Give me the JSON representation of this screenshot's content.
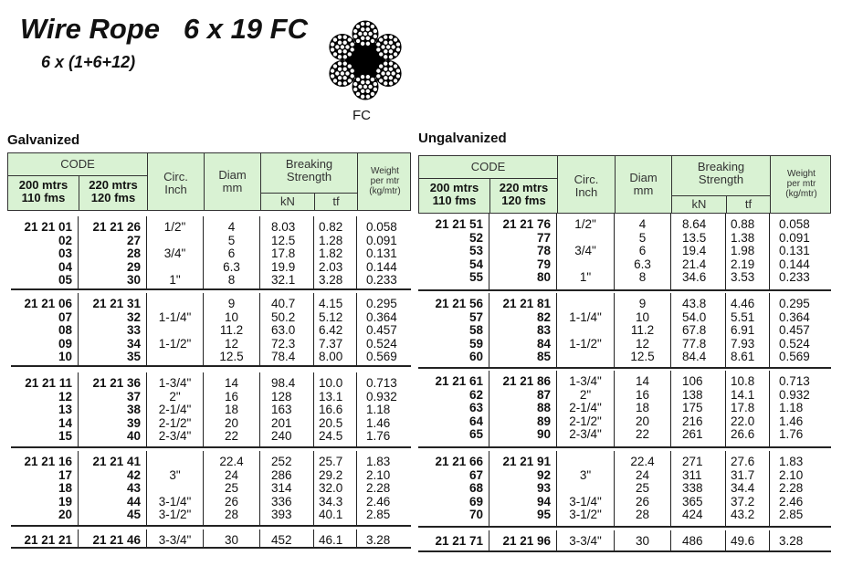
{
  "title": "Wire Rope   6 x 19 FC",
  "subtitle": "6 x (1+6+12)",
  "core_label": "FC",
  "colors": {
    "header_bg": "#d9f2d3",
    "text": "#111111"
  },
  "header": {
    "code": "CODE",
    "code200": [
      "200 mtrs",
      "110 fms"
    ],
    "code220": [
      "220 mtrs",
      "120 fms"
    ],
    "circ": [
      "Circ.",
      "Inch"
    ],
    "diam": [
      "Diam",
      "mm"
    ],
    "breaking": [
      "Breaking",
      "Strength"
    ],
    "kn": "kN",
    "tf": "tf",
    "weight": [
      "Weight",
      "per mtr",
      "(kg/mtr)"
    ]
  },
  "tables": [
    {
      "label": "Galvanized",
      "groups": [
        [
          [
            "21 21 01",
            "21 21 26",
            "1/2\"",
            "4",
            "8.03",
            "0.82",
            "0.058"
          ],
          [
            "02",
            "27",
            "",
            "5",
            "12.5",
            "1.28",
            "0.091"
          ],
          [
            "03",
            "28",
            "3/4\"",
            "6",
            "17.8",
            "1.82",
            "0.131"
          ],
          [
            "04",
            "29",
            "",
            "6.3",
            "19.9",
            "2.03",
            "0.144"
          ],
          [
            "05",
            "30",
            "1\"",
            "8",
            "32.1",
            "3.28",
            "0.233"
          ]
        ],
        [
          [
            "21 21 06",
            "21 21 31",
            "",
            "9",
            "40.7",
            "4.15",
            "0.295"
          ],
          [
            "07",
            "32",
            "1-1/4\"",
            "10",
            "50.2",
            "5.12",
            "0.364"
          ],
          [
            "08",
            "33",
            "",
            "11.2",
            "63.0",
            "6.42",
            "0.457"
          ],
          [
            "09",
            "34",
            "1-1/2\"",
            "12",
            "72.3",
            "7.37",
            "0.524"
          ],
          [
            "10",
            "35",
            "",
            "12.5",
            "78.4",
            "8.00",
            "0.569"
          ]
        ],
        [
          [
            "21 21 11",
            "21 21 36",
            "1-3/4\"",
            "14",
            "98.4",
            "10.0",
            "0.713"
          ],
          [
            "12",
            "37",
            "2\"",
            "16",
            "128",
            "13.1",
            "0.932"
          ],
          [
            "13",
            "38",
            "2-1/4\"",
            "18",
            "163",
            "16.6",
            "1.18"
          ],
          [
            "14",
            "39",
            "2-1/2\"",
            "20",
            "201",
            "20.5",
            "1.46"
          ],
          [
            "15",
            "40",
            "2-3/4\"",
            "22",
            "240",
            "24.5",
            "1.76"
          ]
        ],
        [
          [
            "21 21 16",
            "21 21 41",
            "",
            "22.4",
            "252",
            "25.7",
            "1.83"
          ],
          [
            "17",
            "42",
            "3\"",
            "24",
            "286",
            "29.2",
            "2.10"
          ],
          [
            "18",
            "43",
            "",
            "25",
            "314",
            "32.0",
            "2.28"
          ],
          [
            "19",
            "44",
            "3-1/4\"",
            "26",
            "336",
            "34.3",
            "2.46"
          ],
          [
            "20",
            "45",
            "3-1/2\"",
            "28",
            "393",
            "40.1",
            "2.85"
          ]
        ],
        [
          [
            "21 21 21",
            "21 21 46",
            "3-3/4\"",
            "30",
            "452",
            "46.1",
            "3.28"
          ]
        ]
      ]
    },
    {
      "label": "Ungalvanized",
      "groups": [
        [
          [
            "21 21 51",
            "21 21 76",
            "1/2\"",
            "4",
            "8.64",
            "0.88",
            "0.058"
          ],
          [
            "52",
            "77",
            "",
            "5",
            "13.5",
            "1.38",
            "0.091"
          ],
          [
            "53",
            "78",
            "3/4\"",
            "6",
            "19.4",
            "1.98",
            "0.131"
          ],
          [
            "54",
            "79",
            "",
            "6.3",
            "21.4",
            "2.19",
            "0.144"
          ],
          [
            "55",
            "80",
            "1\"",
            "8",
            "34.6",
            "3.53",
            "0.233"
          ]
        ],
        [
          [
            "21 21 56",
            "21 21 81",
            "",
            "9",
            "43.8",
            "4.46",
            "0.295"
          ],
          [
            "57",
            "82",
            "1-1/4\"",
            "10",
            "54.0",
            "5.51",
            "0.364"
          ],
          [
            "58",
            "83",
            "",
            "11.2",
            "67.8",
            "6.91",
            "0.457"
          ],
          [
            "59",
            "84",
            "1-1/2\"",
            "12",
            "77.8",
            "7.93",
            "0.524"
          ],
          [
            "60",
            "85",
            "",
            "12.5",
            "84.4",
            "8.61",
            "0.569"
          ]
        ],
        [
          [
            "21 21 61",
            "21 21 86",
            "1-3/4\"",
            "14",
            "106",
            "10.8",
            "0.713"
          ],
          [
            "62",
            "87",
            "2\"",
            "16",
            "138",
            "14.1",
            "0.932"
          ],
          [
            "63",
            "88",
            "2-1/4\"",
            "18",
            "175",
            "17.8",
            "1.18"
          ],
          [
            "64",
            "89",
            "2-1/2\"",
            "20",
            "216",
            "22.0",
            "1.46"
          ],
          [
            "65",
            "90",
            "2-3/4\"",
            "22",
            "261",
            "26.6",
            "1.76"
          ]
        ],
        [
          [
            "21 21 66",
            "21 21 91",
            "",
            "22.4",
            "271",
            "27.6",
            "1.83"
          ],
          [
            "67",
            "92",
            "3\"",
            "24",
            "311",
            "31.7",
            "2.10"
          ],
          [
            "68",
            "93",
            "",
            "25",
            "338",
            "34.4",
            "2.28"
          ],
          [
            "69",
            "94",
            "3-1/4\"",
            "26",
            "365",
            "37.2",
            "2.46"
          ],
          [
            "70",
            "95",
            "3-1/2\"",
            "28",
            "424",
            "43.2",
            "2.85"
          ]
        ],
        [
          [
            "21 21 71",
            "21 21 96",
            "3-3/4\"",
            "30",
            "486",
            "49.6",
            "3.28"
          ]
        ]
      ]
    }
  ]
}
